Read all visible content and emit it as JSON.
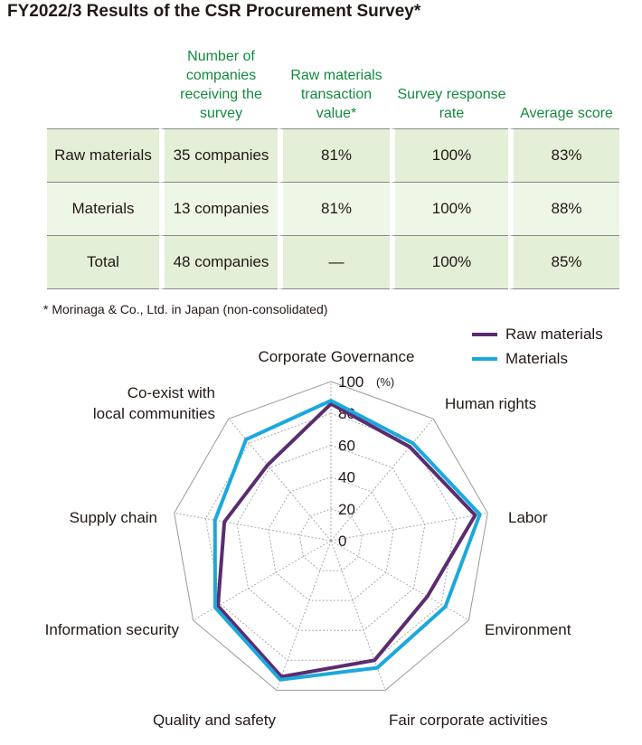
{
  "title": "FY2022/3 Results of the CSR Procurement Survey*",
  "table": {
    "headers": [
      "",
      "Number of companies receiving the survey",
      "Raw materials transaction value*",
      "Survey response rate",
      "Average score"
    ],
    "rows": [
      {
        "category": "Raw materials",
        "companies": "35 companies",
        "transaction_value": "81%",
        "response_rate": "100%",
        "average_score": "83%"
      },
      {
        "category": "Materials",
        "companies": "13 companies",
        "transaction_value": "81%",
        "response_rate": "100%",
        "average_score": "88%"
      },
      {
        "category": "Total",
        "companies": "48 companies",
        "transaction_value": "—",
        "response_rate": "100%",
        "average_score": "85%"
      }
    ]
  },
  "footnote": "* Morinaga & Co., Ltd. in Japan (non-consolidated)",
  "chart_data": {
    "type": "radar",
    "axes": [
      "Corporate Governance",
      "Human rights",
      "Labor",
      "Environment",
      "Fair corporate activities",
      "Quality and safety",
      "Information security",
      "Supply chain",
      "Co-exist with local communities"
    ],
    "ticks": [
      "0",
      "20",
      "40",
      "60",
      "80",
      "100"
    ],
    "unit": "(%)",
    "range": [
      0,
      100
    ],
    "series": [
      {
        "name": "Raw materials",
        "color": "#5b2c6f",
        "values": [
          86,
          77,
          92,
          70,
          80,
          91,
          82,
          68,
          62
        ]
      },
      {
        "name": "Materials",
        "color": "#1ba8dd",
        "values": [
          88,
          80,
          95,
          83,
          85,
          93,
          84,
          74,
          83
        ]
      }
    ]
  }
}
